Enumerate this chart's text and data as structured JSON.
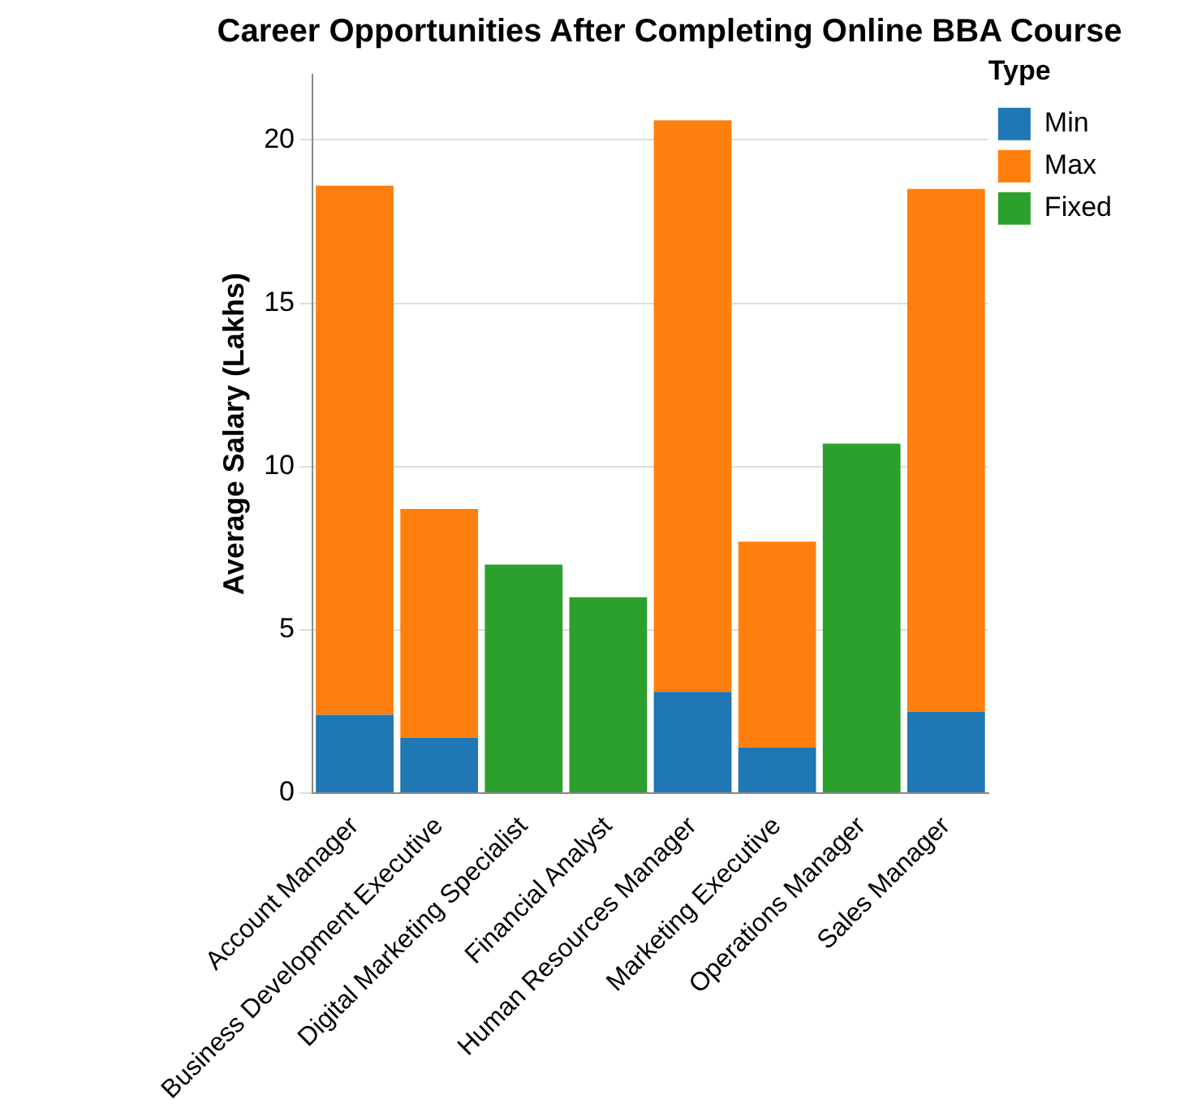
{
  "chart_data": {
    "type": "bar",
    "title": "Career Opportunities After Completing Online BBA Course",
    "ylabel": "Average Salary (Lakhs)",
    "legend_title": "Type",
    "categories": [
      "Account Manager",
      "Business Development Executive",
      "Digital Marketing Specialist",
      "Financial Analyst",
      "Human Resources Manager",
      "Marketing Executive",
      "Operations Manager",
      "Sales Manager"
    ],
    "series": [
      {
        "name": "Min",
        "color": "#1f77b4",
        "values": [
          2.4,
          1.7,
          null,
          null,
          3.1,
          1.4,
          null,
          2.5
        ]
      },
      {
        "name": "Max",
        "color": "#ff7f0e",
        "values": [
          16.2,
          7.0,
          null,
          null,
          17.5,
          6.3,
          null,
          16.0
        ]
      },
      {
        "name": "Fixed",
        "color": "#2ca02c",
        "values": [
          null,
          null,
          7.0,
          6.0,
          null,
          null,
          10.7,
          null
        ]
      }
    ],
    "stacked": true,
    "ylim": [
      0,
      22
    ],
    "yticks": [
      0,
      5,
      10,
      15,
      20
    ],
    "grid": "y",
    "legend": "top right"
  }
}
